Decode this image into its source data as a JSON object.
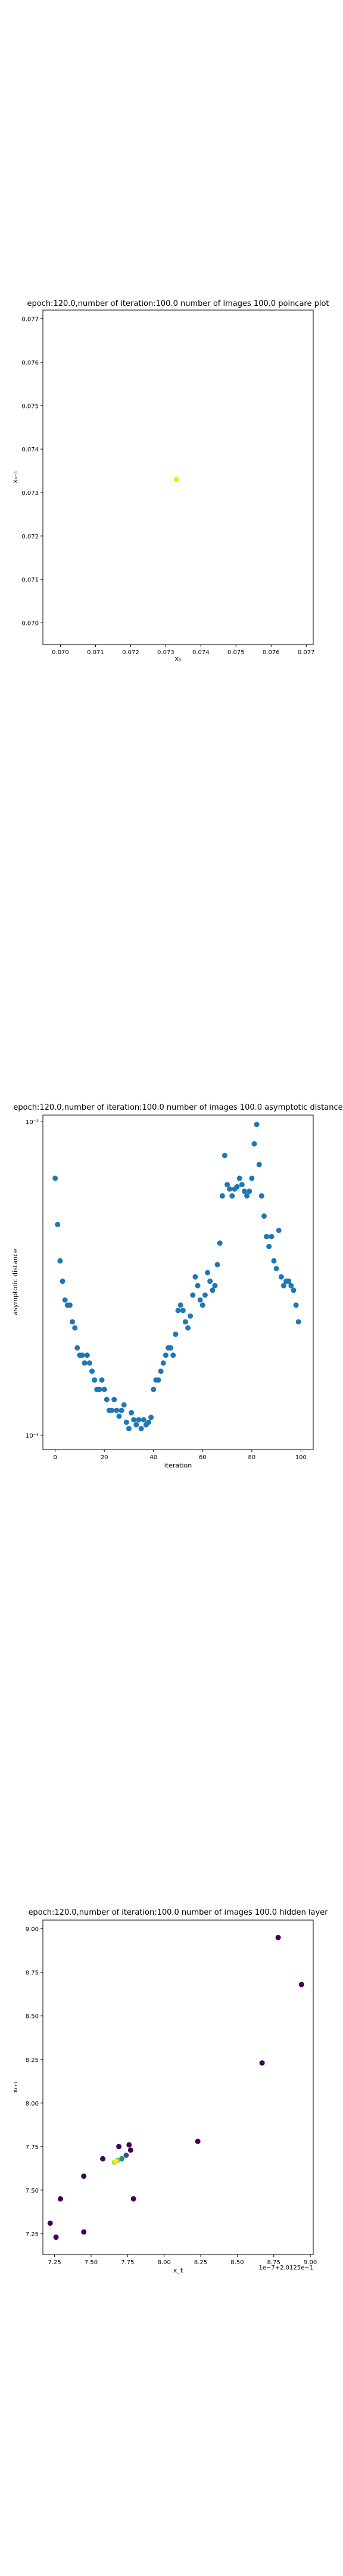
{
  "charts": [
    {
      "type": "scatter",
      "title": "epoch:120.0,number of iteration:100.0  number of images 100.0 poincare plot",
      "xlabel": "xₙ",
      "ylabel": "xₙ₊₁",
      "xlim": [
        0.0695,
        0.0772
      ],
      "ylim": [
        0.0695,
        0.0772
      ],
      "xticks": [
        0.07,
        0.071,
        0.072,
        0.073,
        0.074,
        0.075,
        0.076,
        0.077
      ],
      "xtick_labels": [
        "0.070",
        "0.071",
        "0.072",
        "0.073",
        "0.074",
        "0.075",
        "0.076",
        "0.077"
      ],
      "yticks": [
        0.07,
        0.071,
        0.072,
        0.073,
        0.074,
        0.075,
        0.076,
        0.077
      ],
      "ytick_labels": [
        "0.070",
        "0.071",
        "0.072",
        "0.073",
        "0.074",
        "0.075",
        "0.076",
        "0.077"
      ],
      "points": [
        {
          "x": 0.0733,
          "y": 0.0733
        }
      ],
      "point_color": "#f5e61e"
    },
    {
      "type": "scatter",
      "scale_y": "log",
      "title": "epoch:120.0,number of iteration:100.0  number of images 100.0 asymptotic distance",
      "xlabel": "iteration",
      "ylabel": "asymptotic distance",
      "xlim": [
        -5,
        105
      ],
      "ylim": [
        0.0009,
        0.0105
      ],
      "xticks": [
        0,
        20,
        40,
        60,
        80,
        100
      ],
      "xtick_labels": [
        "0",
        "20",
        "40",
        "60",
        "80",
        "100"
      ],
      "yticks": [
        0.001,
        0.01
      ],
      "ytick_labels": [
        "10⁻³",
        "10⁻²"
      ],
      "x": [
        0,
        1,
        2,
        3,
        4,
        5,
        6,
        7,
        8,
        9,
        10,
        11,
        12,
        13,
        14,
        15,
        16,
        17,
        18,
        19,
        20,
        21,
        22,
        23,
        24,
        25,
        26,
        27,
        28,
        29,
        30,
        31,
        32,
        33,
        34,
        35,
        36,
        37,
        38,
        39,
        40,
        41,
        42,
        43,
        44,
        45,
        46,
        47,
        48,
        49,
        50,
        51,
        52,
        53,
        54,
        55,
        56,
        57,
        58,
        59,
        60,
        61,
        62,
        63,
        64,
        65,
        66,
        67,
        68,
        69,
        70,
        71,
        72,
        73,
        74,
        75,
        76,
        77,
        78,
        79,
        80,
        81,
        82,
        83,
        84,
        85,
        86,
        87,
        88,
        89,
        90,
        91,
        92,
        93,
        94,
        95,
        96,
        97,
        98,
        99
      ],
      "y": [
        0.0066,
        0.0047,
        0.0036,
        0.0031,
        0.0027,
        0.0026,
        0.0026,
        0.0023,
        0.0022,
        0.0019,
        0.0018,
        0.0018,
        0.0017,
        0.0018,
        0.0017,
        0.0016,
        0.0015,
        0.0014,
        0.0014,
        0.0015,
        0.0014,
        0.0013,
        0.0012,
        0.0012,
        0.0013,
        0.0012,
        0.00115,
        0.0012,
        0.00125,
        0.0011,
        0.00105,
        0.00118,
        0.00112,
        0.00108,
        0.00112,
        0.00105,
        0.00112,
        0.00108,
        0.0011,
        0.00114,
        0.0014,
        0.0015,
        0.0015,
        0.0016,
        0.0017,
        0.0018,
        0.0019,
        0.0019,
        0.0018,
        0.0021,
        0.0025,
        0.0026,
        0.0025,
        0.0023,
        0.0022,
        0.0024,
        0.0028,
        0.0032,
        0.003,
        0.0027,
        0.0026,
        0.0028,
        0.0033,
        0.0031,
        0.0029,
        0.003,
        0.0035,
        0.0041,
        0.0058,
        0.0078,
        0.0063,
        0.0061,
        0.0058,
        0.0061,
        0.0062,
        0.0066,
        0.0063,
        0.006,
        0.0058,
        0.006,
        0.0066,
        0.0085,
        0.0098,
        0.0073,
        0.0058,
        0.005,
        0.0043,
        0.004,
        0.0043,
        0.0036,
        0.0034,
        0.0045,
        0.0032,
        0.003,
        0.0031,
        0.0031,
        0.003,
        0.0029,
        0.0026,
        0.0023
      ],
      "point_color": "#1f77b4"
    },
    {
      "type": "scatter",
      "title": "epoch:120.0,number of iteration:100.0  number of images 100.0 hidden layer",
      "xlabel": "x_t",
      "ylabel": "xₜ₊₁",
      "offset_text": "1e−7+2.0125e−1",
      "xlim": [
        7.17,
        9.02
      ],
      "ylim": [
        7.13,
        9.05
      ],
      "xticks": [
        7.25,
        7.5,
        7.75,
        8.0,
        8.25,
        8.5,
        8.75,
        9.0
      ],
      "xtick_labels": [
        "7.25",
        "7.50",
        "7.75",
        "8.00",
        "8.25",
        "8.50",
        "8.75",
        "9.00"
      ],
      "yticks": [
        7.25,
        7.5,
        7.75,
        8.0,
        8.25,
        8.5,
        8.75,
        9.0
      ],
      "ytick_labels": [
        "7.25",
        "7.50",
        "7.75",
        "8.00",
        "8.25",
        "8.50",
        "8.75",
        "9.00"
      ],
      "points": [
        {
          "x": 8.78,
          "y": 8.95,
          "color": "#440154"
        },
        {
          "x": 8.94,
          "y": 8.68,
          "color": "#440154"
        },
        {
          "x": 8.67,
          "y": 8.23,
          "color": "#440154"
        },
        {
          "x": 8.23,
          "y": 7.78,
          "color": "#440154"
        },
        {
          "x": 7.79,
          "y": 7.45,
          "color": "#440154"
        },
        {
          "x": 7.45,
          "y": 7.26,
          "color": "#440154"
        },
        {
          "x": 7.26,
          "y": 7.23,
          "color": "#440154"
        },
        {
          "x": 7.22,
          "y": 7.31,
          "color": "#440154"
        },
        {
          "x": 7.29,
          "y": 7.45,
          "color": "#440154"
        },
        {
          "x": 7.45,
          "y": 7.58,
          "color": "#440154"
        },
        {
          "x": 7.58,
          "y": 7.68,
          "color": "#440154"
        },
        {
          "x": 7.69,
          "y": 7.75,
          "color": "#440154"
        },
        {
          "x": 7.76,
          "y": 7.76,
          "color": "#440154"
        },
        {
          "x": 7.77,
          "y": 7.73,
          "color": "#440154"
        },
        {
          "x": 7.74,
          "y": 7.7,
          "color": "#3b528b"
        },
        {
          "x": 7.71,
          "y": 7.68,
          "color": "#21918c"
        },
        {
          "x": 7.68,
          "y": 7.67,
          "color": "#5ec962"
        },
        {
          "x": 7.66,
          "y": 7.66,
          "color": "#b5de2b"
        },
        {
          "x": 7.67,
          "y": 7.665,
          "color": "#fde725"
        }
      ]
    }
  ]
}
